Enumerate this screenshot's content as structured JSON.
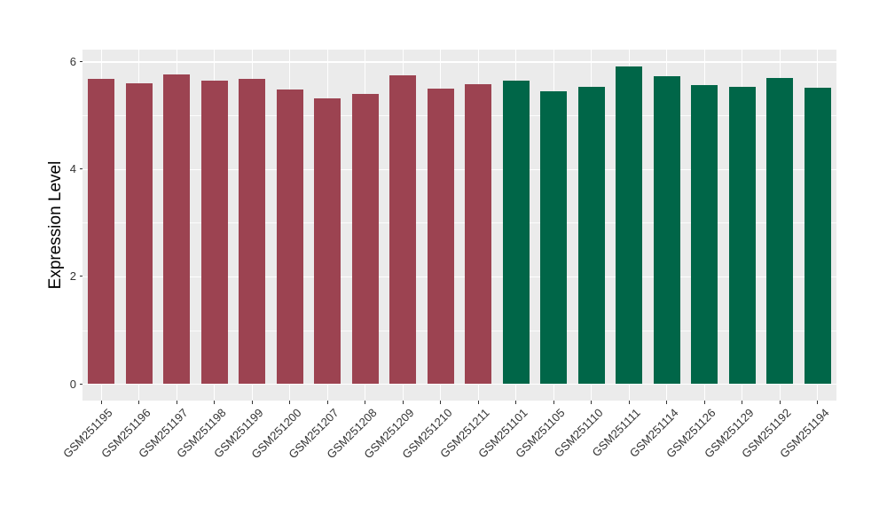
{
  "style": {
    "figure_background": "#FFFFFF",
    "panel_background": "#EBEBEB",
    "gridline_color": "#FFFFFF",
    "axis_text_color": "#333333",
    "axis_title_color": "#000000",
    "tick_mark_color": "#333333"
  },
  "chart_data": {
    "type": "bar",
    "title": "",
    "xlabel": "",
    "ylabel": "Expression Level",
    "ylim": [
      -0.31,
      6.22
    ],
    "yticks": [
      0,
      2,
      4,
      6
    ],
    "yticks_minor": [
      1,
      3,
      5
    ],
    "grid": true,
    "legend": "none",
    "x_tick_label_angle": 45,
    "group_colors": {
      "maroon": "#9C4351",
      "green": "#006648"
    },
    "bars": [
      {
        "label": "GSM251195",
        "value": 5.67,
        "group": "maroon"
      },
      {
        "label": "GSM251196",
        "value": 5.6,
        "group": "maroon"
      },
      {
        "label": "GSM251197",
        "value": 5.76,
        "group": "maroon"
      },
      {
        "label": "GSM251198",
        "value": 5.65,
        "group": "maroon"
      },
      {
        "label": "GSM251199",
        "value": 5.67,
        "group": "maroon"
      },
      {
        "label": "GSM251200",
        "value": 5.47,
        "group": "maroon"
      },
      {
        "label": "GSM251207",
        "value": 5.31,
        "group": "maroon"
      },
      {
        "label": "GSM251208",
        "value": 5.4,
        "group": "maroon"
      },
      {
        "label": "GSM251209",
        "value": 5.74,
        "group": "maroon"
      },
      {
        "label": "GSM251210",
        "value": 5.5,
        "group": "maroon"
      },
      {
        "label": "GSM251211",
        "value": 5.58,
        "group": "maroon"
      },
      {
        "label": "GSM251101",
        "value": 5.64,
        "group": "green"
      },
      {
        "label": "GSM251105",
        "value": 5.44,
        "group": "green"
      },
      {
        "label": "GSM251110",
        "value": 5.52,
        "group": "green"
      },
      {
        "label": "GSM251111",
        "value": 5.91,
        "group": "green"
      },
      {
        "label": "GSM251114",
        "value": 5.72,
        "group": "green"
      },
      {
        "label": "GSM251126",
        "value": 5.56,
        "group": "green"
      },
      {
        "label": "GSM251129",
        "value": 5.52,
        "group": "green"
      },
      {
        "label": "GSM251192",
        "value": 5.69,
        "group": "green"
      },
      {
        "label": "GSM251194",
        "value": 5.51,
        "group": "green"
      }
    ]
  }
}
